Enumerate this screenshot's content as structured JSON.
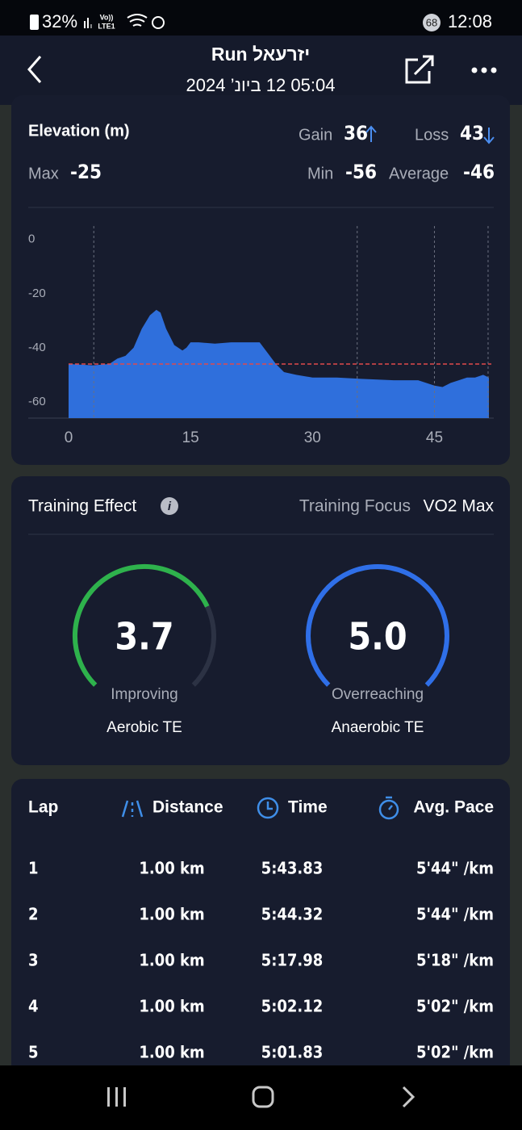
{
  "status_bar": {
    "battery": "32%",
    "network": "Vo))",
    "network_type": "LTE1",
    "notifications": "68",
    "time": "12:08"
  },
  "header": {
    "title": "Run יזרעאל",
    "datetime": "05:04 12 ביונ’ 2024"
  },
  "elevation": {
    "title": "Elevation (m)",
    "gain_label": "Gain",
    "gain": "36",
    "loss_label": "Loss",
    "loss": "43",
    "max_label": "Max",
    "max": "-25",
    "min_label": "Min",
    "min": "-56",
    "average_label": "Average",
    "average": "-46"
  },
  "chart_data": {
    "type": "area",
    "color": "#2f6fdc",
    "x": [
      0,
      3,
      5,
      6,
      7,
      8,
      9,
      10,
      10.8,
      11.3,
      12,
      13,
      14,
      14.5,
      15,
      16,
      18,
      20,
      22,
      23.5,
      24.5,
      25.5,
      26.5,
      28,
      30,
      33,
      36,
      40,
      43,
      45,
      46,
      47,
      48,
      49,
      50,
      51,
      51.7
    ],
    "values": [
      -46,
      -46.5,
      -46,
      -44,
      -43,
      -40,
      -33,
      -28,
      -26,
      -27,
      -33,
      -39,
      -41,
      -40,
      -38,
      -38,
      -38.5,
      -38,
      -38,
      -38,
      -42,
      -46,
      -49,
      -50,
      -51,
      -51,
      -51.5,
      -52,
      -52,
      -54,
      -54.5,
      -53,
      -52,
      -51,
      -51,
      -50,
      -51
    ],
    "xlim": [
      0,
      52
    ],
    "ylim": [
      -66,
      5
    ],
    "xticks": [
      0,
      15,
      30,
      45
    ],
    "yticks": [
      0,
      -20,
      -40,
      -60
    ],
    "reference_line": {
      "value": -46,
      "color": "#e0494b"
    },
    "marker_lines": [
      3.1,
      35.5,
      45,
      51.6
    ]
  },
  "training": {
    "title": "Training Effect",
    "focus_label": "Training Focus",
    "focus": "VO2 Max",
    "scale_max": 5,
    "gauges": [
      {
        "value": 3.7,
        "status": "Improving",
        "name": "Aerobic TE",
        "color": "#2eb24c"
      },
      {
        "value": 5.0,
        "value_label": "5.0",
        "status": "Overreaching",
        "name": "Anaerobic TE",
        "color": "#2f6fe8"
      }
    ]
  },
  "laps": {
    "headers": [
      "Lap",
      "Distance",
      "Time",
      "Avg. Pace"
    ],
    "rows": [
      [
        "1",
        "1.00 km",
        "5:43.83",
        "5'44\" /km"
      ],
      [
        "2",
        "1.00 km",
        "5:44.32",
        "5'44\" /km"
      ],
      [
        "3",
        "1.00 km",
        "5:17.98",
        "5'18\" /km"
      ],
      [
        "4",
        "1.00 km",
        "5:02.12",
        "5'02\" /km"
      ],
      [
        "5",
        "1.00 km",
        "5:01.83",
        "5'02\" /km"
      ]
    ]
  }
}
